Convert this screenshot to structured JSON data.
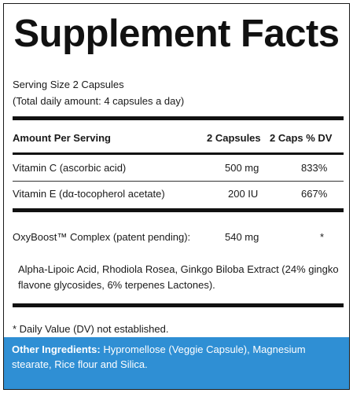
{
  "panel": {
    "title": "Supplement Facts",
    "serving_size": "Serving Size 2 Capsules",
    "daily_amount": "(Total daily amount: 4 capsules a day)",
    "header": {
      "amount_per_serving": "Amount Per Serving",
      "col_capsules": "2 Capsules",
      "col_dv": "2 Caps % DV"
    },
    "rows": [
      {
        "name": "Vitamin C (ascorbic acid)",
        "amount": "500 mg",
        "dv": "833%"
      },
      {
        "name": "Vitamin E (dα-tocopherol acetate)",
        "amount": "200 IU",
        "dv": "667%"
      }
    ],
    "blend": {
      "name": "OxyBoost™ Complex (patent pending):",
      "amount": "540 mg",
      "dv": "*",
      "description": "Alpha-Lipoic Acid, Rhodiola Rosea, Ginkgo Biloba Extract (24% gingko flavone glycosides, 6% terpenes Lactones)."
    },
    "footnote": "* Daily Value (DV) not established.",
    "other_ingredients": {
      "label": "Other Ingredients:",
      "text": "Hypromellose (Veggie Capsule), Magnesium stearate, Rice flour and Silica."
    }
  },
  "colors": {
    "other_band": "#2f8fd4",
    "text": "#1a1a1a"
  }
}
